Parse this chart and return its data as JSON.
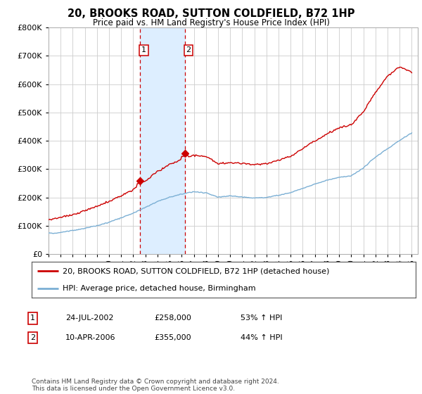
{
  "title": "20, BROOKS ROAD, SUTTON COLDFIELD, B72 1HP",
  "subtitle": "Price paid vs. HM Land Registry's House Price Index (HPI)",
  "legend_line1": "20, BROOKS ROAD, SUTTON COLDFIELD, B72 1HP (detached house)",
  "legend_line2": "HPI: Average price, detached house, Birmingham",
  "table_rows": [
    {
      "num": "1",
      "date": "24-JUL-2002",
      "price": "£258,000",
      "hpi": "53% ↑ HPI"
    },
    {
      "num": "2",
      "date": "10-APR-2006",
      "price": "£355,000",
      "hpi": "44% ↑ HPI"
    }
  ],
  "footnote": "Contains HM Land Registry data © Crown copyright and database right 2024.\nThis data is licensed under the Open Government Licence v3.0.",
  "sale1_date": 2002.56,
  "sale1_price": 258000,
  "sale2_date": 2006.27,
  "sale2_price": 355000,
  "background_color": "#ffffff",
  "plot_bg_color": "#ffffff",
  "grid_color": "#cccccc",
  "red_line_color": "#cc0000",
  "blue_line_color": "#7bafd4",
  "shade_color": "#ddeeff",
  "vline_color": "#cc0000",
  "ylim": [
    0,
    800000
  ],
  "xlim_start": 1995.0,
  "xlim_end": 2025.5,
  "hpi_base": [
    70000,
    75000,
    82000,
    90000,
    100000,
    113000,
    128000,
    145000,
    165000,
    185000,
    200000,
    212000,
    220000,
    215000,
    200000,
    205000,
    200000,
    197000,
    200000,
    208000,
    218000,
    232000,
    248000,
    262000,
    272000,
    278000,
    305000,
    345000,
    375000,
    405000,
    430000
  ],
  "red_base": [
    120000,
    128000,
    138000,
    152000,
    168000,
    185000,
    205000,
    230000,
    260000,
    295000,
    320000,
    335000,
    350000,
    345000,
    320000,
    325000,
    320000,
    318000,
    322000,
    332000,
    348000,
    372000,
    400000,
    425000,
    445000,
    455000,
    500000,
    570000,
    625000,
    660000,
    640000
  ],
  "hpi_years": [
    1995,
    1996,
    1997,
    1998,
    1999,
    2000,
    2001,
    2002,
    2003,
    2004,
    2005,
    2006,
    2007,
    2008,
    2009,
    2010,
    2011,
    2012,
    2013,
    2014,
    2015,
    2016,
    2017,
    2018,
    2019,
    2020,
    2021,
    2022,
    2023,
    2024,
    2025
  ]
}
